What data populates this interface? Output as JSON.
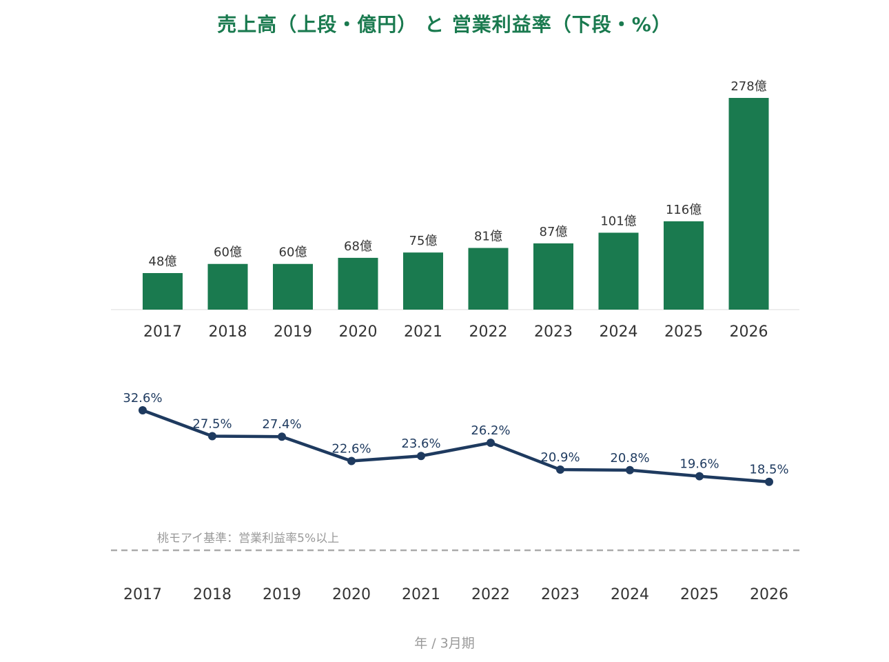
{
  "chart_data": [
    {
      "type": "bar",
      "title": "売上高（上段・億円） と 営業利益率（下段・%）",
      "categories": [
        "2017",
        "2018",
        "2019",
        "2020",
        "2021",
        "2022",
        "2023",
        "2024",
        "2025",
        "2026"
      ],
      "values": [
        48,
        60,
        60,
        68,
        75,
        81,
        87,
        101,
        116,
        278
      ],
      "data_labels": [
        "48億",
        "60億",
        "60億",
        "68億",
        "75億",
        "81億",
        "87億",
        "101億",
        "116億",
        "278億"
      ],
      "unit_suffix": "億",
      "color": "#1a7a4f",
      "ylim": [
        0,
        278
      ]
    },
    {
      "type": "line",
      "categories": [
        "2017",
        "2018",
        "2019",
        "2020",
        "2021",
        "2022",
        "2023",
        "2024",
        "2025",
        "2026"
      ],
      "values": [
        32.6,
        27.5,
        27.4,
        22.6,
        23.6,
        26.2,
        20.9,
        20.8,
        19.6,
        18.5
      ],
      "data_labels": [
        "32.6%",
        "27.5%",
        "27.4%",
        "22.6%",
        "23.6%",
        "26.2%",
        "20.9%",
        "20.8%",
        "19.6%",
        "18.5%"
      ],
      "color": "#1e3a5f",
      "reference_line": {
        "value": 5,
        "label": "桃モアイ基準：営業利益率5%以上",
        "color": "#aaaaaa"
      },
      "ylim": [
        5,
        32.6
      ],
      "xlabel": "年 / 3月期"
    }
  ],
  "colors": {
    "title": "#1a7a4f",
    "bar": "#1a7a4f",
    "line": "#1e3a5f",
    "axis": "#dddddd",
    "muted": "#999999"
  }
}
